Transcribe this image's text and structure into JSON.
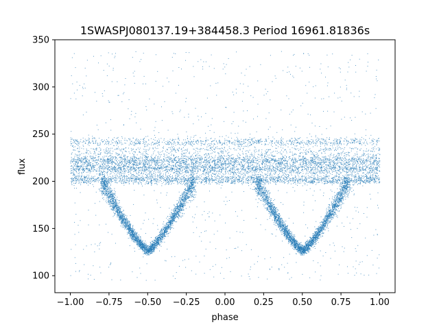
{
  "chart_data": {
    "type": "scatter",
    "title": "1SWASPJ080137.19+384458.3 Period 16961.81836s",
    "xlabel": "phase",
    "ylabel": "flux",
    "xlim": [
      -1.1,
      1.1
    ],
    "ylim": [
      82,
      350
    ],
    "xticks": [
      -1.0,
      -0.75,
      -0.5,
      -0.25,
      0.0,
      0.25,
      0.5,
      0.75,
      1.0
    ],
    "xtick_labels": [
      "−1.00",
      "−0.75",
      "−0.50",
      "−0.25",
      "0.00",
      "0.25",
      "0.50",
      "0.75",
      "1.00"
    ],
    "yticks": [
      100,
      150,
      200,
      250,
      300,
      350
    ],
    "ytick_labels": [
      "100",
      "150",
      "200",
      "250",
      "300",
      "350"
    ],
    "grid": false,
    "marker_color": "#1f77b4",
    "series": [
      {
        "phase_range": [
          -1.0,
          1.0
        ],
        "baseline_bands_flux": [
          202,
          214,
          222,
          242
        ],
        "baseline_flux_range": [
          190,
          246
        ],
        "eclipse_centers_phase": [
          -0.5,
          0.5
        ],
        "eclipse_min_flux": 124,
        "eclipse_half_width_phase": 0.3,
        "outlier_flux_range": [
          95,
          338
        ]
      }
    ]
  }
}
